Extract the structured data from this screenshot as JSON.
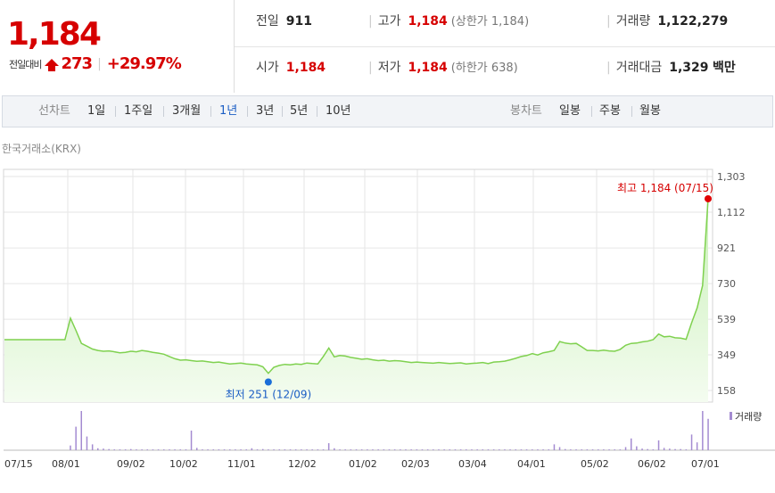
{
  "quote": {
    "price": "1,184",
    "change_label": "전일대비",
    "change_value": "273",
    "change_pct": "+29.97%",
    "prev_close_label": "전일",
    "prev_close": "911",
    "high_label": "고가",
    "high": "1,184",
    "upper_limit": "(상한가 1,184)",
    "volume_label": "거래량",
    "volume": "1,122,279",
    "open_label": "시가",
    "open": "1,184",
    "low_label": "저가",
    "low": "1,184",
    "lower_limit": "(하한가 638)",
    "amount_label": "거래대금",
    "amount": "1,329",
    "amount_unit": "백만",
    "up_color": "#d60000"
  },
  "period_bar": {
    "line_chart_label": "선차트",
    "line_options": [
      "1일",
      "1주일",
      "3개월",
      "1년",
      "3년",
      "5년",
      "10년"
    ],
    "selected": "1년",
    "candle_chart_label": "봉차트",
    "candle_options": [
      "일봉",
      "주봉",
      "월봉"
    ]
  },
  "exchange_label": "한국거래소(KRX)",
  "chart_data": {
    "type": "area",
    "x_ticks": [
      "07/15",
      "08/01",
      "09/02",
      "10/02",
      "11/01",
      "12/02",
      "01/02",
      "02/03",
      "03/04",
      "04/01",
      "05/02",
      "06/02",
      "07/01"
    ],
    "y_ticks": [
      158,
      349,
      539,
      730,
      921,
      1112,
      1303
    ],
    "ylim": [
      158,
      1303
    ],
    "series": [
      {
        "values": [
          430,
          430,
          430,
          430,
          430,
          430,
          430,
          430,
          430,
          430,
          430,
          430,
          545,
          480,
          410,
          395,
          380,
          372,
          368,
          370,
          365,
          360,
          362,
          368,
          365,
          372,
          368,
          362,
          358,
          352,
          340,
          328,
          320,
          322,
          318,
          314,
          316,
          312,
          308,
          310,
          305,
          300,
          302,
          305,
          300,
          298,
          295,
          285,
          250,
          282,
          292,
          298,
          295,
          300,
          298,
          305,
          302,
          300,
          340,
          385,
          338,
          345,
          342,
          335,
          330,
          325,
          328,
          322,
          318,
          320,
          315,
          318,
          316,
          312,
          308,
          310,
          308,
          306,
          304,
          308,
          305,
          302,
          304,
          306,
          300,
          303,
          305,
          308,
          302,
          310,
          312,
          315,
          322,
          330,
          340,
          345,
          355,
          348,
          360,
          365,
          372,
          420,
          412,
          408,
          410,
          392,
          372,
          372,
          370,
          374,
          370,
          368,
          378,
          400,
          410,
          412,
          418,
          422,
          430,
          460,
          445,
          448,
          440,
          438,
          432,
          520,
          600,
          720,
          1184
        ]
      }
    ],
    "high_marker": {
      "label": "최고 1,184 (07/15)",
      "value": 1184
    },
    "low_marker": {
      "label": "최저 251 (12/09)",
      "value": 251
    },
    "volume_legend": "거래량",
    "volume_bars": [
      0,
      0,
      0,
      0,
      0,
      0,
      0,
      0,
      0,
      0,
      0,
      0,
      0.12,
      0.6,
      1.0,
      0.35,
      0.15,
      0.05,
      0.04,
      0.03,
      0.02,
      0.02,
      0.02,
      0.03,
      0.02,
      0.02,
      0.02,
      0.02,
      0.02,
      0.02,
      0.02,
      0.02,
      0.02,
      0.02,
      0.5,
      0.06,
      0.02,
      0.02,
      0.02,
      0.02,
      0.02,
      0.02,
      0.02,
      0.02,
      0.02,
      0.05,
      0.02,
      0.03,
      0.02,
      0.02,
      0.02,
      0.02,
      0.02,
      0.02,
      0.02,
      0.02,
      0.02,
      0.02,
      0.02,
      0.18,
      0.05,
      0.02,
      0.02,
      0.02,
      0.02,
      0.02,
      0.02,
      0.02,
      0.02,
      0.02,
      0.02,
      0.02,
      0.02,
      0.02,
      0.02,
      0.02,
      0.02,
      0.02,
      0.02,
      0.02,
      0.02,
      0.02,
      0.02,
      0.02,
      0.02,
      0.02,
      0.02,
      0.02,
      0.02,
      0.02,
      0.02,
      0.02,
      0.02,
      0.02,
      0.02,
      0.02,
      0.02,
      0.02,
      0.02,
      0.02,
      0.15,
      0.08,
      0.03,
      0.02,
      0.02,
      0.02,
      0.02,
      0.02,
      0.02,
      0.02,
      0.02,
      0.02,
      0.02,
      0.08,
      0.3,
      0.1,
      0.04,
      0.03,
      0.02,
      0.25,
      0.06,
      0.04,
      0.03,
      0.03,
      0.02,
      0.4,
      0.2,
      1.0,
      0.8
    ]
  }
}
